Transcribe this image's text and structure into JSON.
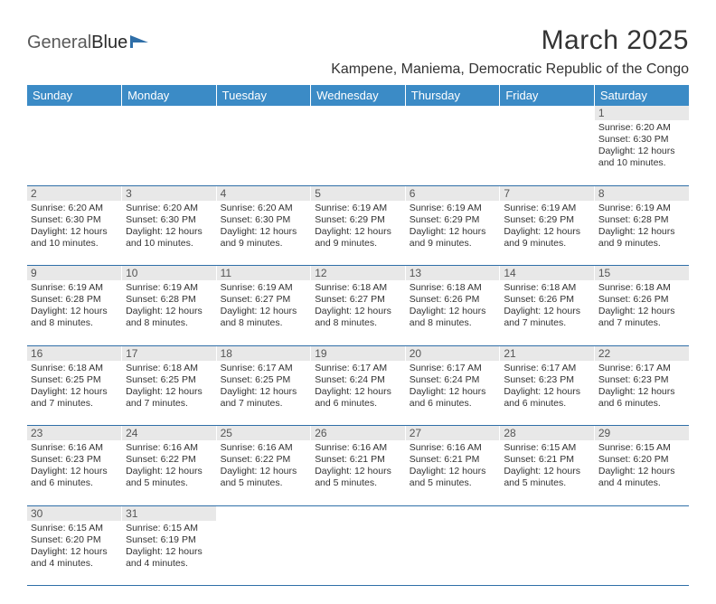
{
  "brand": {
    "part1": "General",
    "part2": "Blue"
  },
  "title": "March 2025",
  "location": "Kampene, Maniema, Democratic Republic of the Congo",
  "colors": {
    "header_bg": "#3b8bc6",
    "header_fg": "#ffffff",
    "daynum_bg": "#e8e8e8",
    "row_border": "#2f6fa8",
    "logo_flag": "#2f6fa8"
  },
  "weekdays": [
    "Sunday",
    "Monday",
    "Tuesday",
    "Wednesday",
    "Thursday",
    "Friday",
    "Saturday"
  ],
  "weeks": [
    [
      null,
      null,
      null,
      null,
      null,
      null,
      {
        "n": "1",
        "sr": "Sunrise: 6:20 AM",
        "ss": "Sunset: 6:30 PM",
        "dl": "Daylight: 12 hours and 10 minutes."
      }
    ],
    [
      {
        "n": "2",
        "sr": "Sunrise: 6:20 AM",
        "ss": "Sunset: 6:30 PM",
        "dl": "Daylight: 12 hours and 10 minutes."
      },
      {
        "n": "3",
        "sr": "Sunrise: 6:20 AM",
        "ss": "Sunset: 6:30 PM",
        "dl": "Daylight: 12 hours and 10 minutes."
      },
      {
        "n": "4",
        "sr": "Sunrise: 6:20 AM",
        "ss": "Sunset: 6:30 PM",
        "dl": "Daylight: 12 hours and 9 minutes."
      },
      {
        "n": "5",
        "sr": "Sunrise: 6:19 AM",
        "ss": "Sunset: 6:29 PM",
        "dl": "Daylight: 12 hours and 9 minutes."
      },
      {
        "n": "6",
        "sr": "Sunrise: 6:19 AM",
        "ss": "Sunset: 6:29 PM",
        "dl": "Daylight: 12 hours and 9 minutes."
      },
      {
        "n": "7",
        "sr": "Sunrise: 6:19 AM",
        "ss": "Sunset: 6:29 PM",
        "dl": "Daylight: 12 hours and 9 minutes."
      },
      {
        "n": "8",
        "sr": "Sunrise: 6:19 AM",
        "ss": "Sunset: 6:28 PM",
        "dl": "Daylight: 12 hours and 9 minutes."
      }
    ],
    [
      {
        "n": "9",
        "sr": "Sunrise: 6:19 AM",
        "ss": "Sunset: 6:28 PM",
        "dl": "Daylight: 12 hours and 8 minutes."
      },
      {
        "n": "10",
        "sr": "Sunrise: 6:19 AM",
        "ss": "Sunset: 6:28 PM",
        "dl": "Daylight: 12 hours and 8 minutes."
      },
      {
        "n": "11",
        "sr": "Sunrise: 6:19 AM",
        "ss": "Sunset: 6:27 PM",
        "dl": "Daylight: 12 hours and 8 minutes."
      },
      {
        "n": "12",
        "sr": "Sunrise: 6:18 AM",
        "ss": "Sunset: 6:27 PM",
        "dl": "Daylight: 12 hours and 8 minutes."
      },
      {
        "n": "13",
        "sr": "Sunrise: 6:18 AM",
        "ss": "Sunset: 6:26 PM",
        "dl": "Daylight: 12 hours and 8 minutes."
      },
      {
        "n": "14",
        "sr": "Sunrise: 6:18 AM",
        "ss": "Sunset: 6:26 PM",
        "dl": "Daylight: 12 hours and 7 minutes."
      },
      {
        "n": "15",
        "sr": "Sunrise: 6:18 AM",
        "ss": "Sunset: 6:26 PM",
        "dl": "Daylight: 12 hours and 7 minutes."
      }
    ],
    [
      {
        "n": "16",
        "sr": "Sunrise: 6:18 AM",
        "ss": "Sunset: 6:25 PM",
        "dl": "Daylight: 12 hours and 7 minutes."
      },
      {
        "n": "17",
        "sr": "Sunrise: 6:18 AM",
        "ss": "Sunset: 6:25 PM",
        "dl": "Daylight: 12 hours and 7 minutes."
      },
      {
        "n": "18",
        "sr": "Sunrise: 6:17 AM",
        "ss": "Sunset: 6:25 PM",
        "dl": "Daylight: 12 hours and 7 minutes."
      },
      {
        "n": "19",
        "sr": "Sunrise: 6:17 AM",
        "ss": "Sunset: 6:24 PM",
        "dl": "Daylight: 12 hours and 6 minutes."
      },
      {
        "n": "20",
        "sr": "Sunrise: 6:17 AM",
        "ss": "Sunset: 6:24 PM",
        "dl": "Daylight: 12 hours and 6 minutes."
      },
      {
        "n": "21",
        "sr": "Sunrise: 6:17 AM",
        "ss": "Sunset: 6:23 PM",
        "dl": "Daylight: 12 hours and 6 minutes."
      },
      {
        "n": "22",
        "sr": "Sunrise: 6:17 AM",
        "ss": "Sunset: 6:23 PM",
        "dl": "Daylight: 12 hours and 6 minutes."
      }
    ],
    [
      {
        "n": "23",
        "sr": "Sunrise: 6:16 AM",
        "ss": "Sunset: 6:23 PM",
        "dl": "Daylight: 12 hours and 6 minutes."
      },
      {
        "n": "24",
        "sr": "Sunrise: 6:16 AM",
        "ss": "Sunset: 6:22 PM",
        "dl": "Daylight: 12 hours and 5 minutes."
      },
      {
        "n": "25",
        "sr": "Sunrise: 6:16 AM",
        "ss": "Sunset: 6:22 PM",
        "dl": "Daylight: 12 hours and 5 minutes."
      },
      {
        "n": "26",
        "sr": "Sunrise: 6:16 AM",
        "ss": "Sunset: 6:21 PM",
        "dl": "Daylight: 12 hours and 5 minutes."
      },
      {
        "n": "27",
        "sr": "Sunrise: 6:16 AM",
        "ss": "Sunset: 6:21 PM",
        "dl": "Daylight: 12 hours and 5 minutes."
      },
      {
        "n": "28",
        "sr": "Sunrise: 6:15 AM",
        "ss": "Sunset: 6:21 PM",
        "dl": "Daylight: 12 hours and 5 minutes."
      },
      {
        "n": "29",
        "sr": "Sunrise: 6:15 AM",
        "ss": "Sunset: 6:20 PM",
        "dl": "Daylight: 12 hours and 4 minutes."
      }
    ],
    [
      {
        "n": "30",
        "sr": "Sunrise: 6:15 AM",
        "ss": "Sunset: 6:20 PM",
        "dl": "Daylight: 12 hours and 4 minutes."
      },
      {
        "n": "31",
        "sr": "Sunrise: 6:15 AM",
        "ss": "Sunset: 6:19 PM",
        "dl": "Daylight: 12 hours and 4 minutes."
      },
      null,
      null,
      null,
      null,
      null
    ]
  ]
}
